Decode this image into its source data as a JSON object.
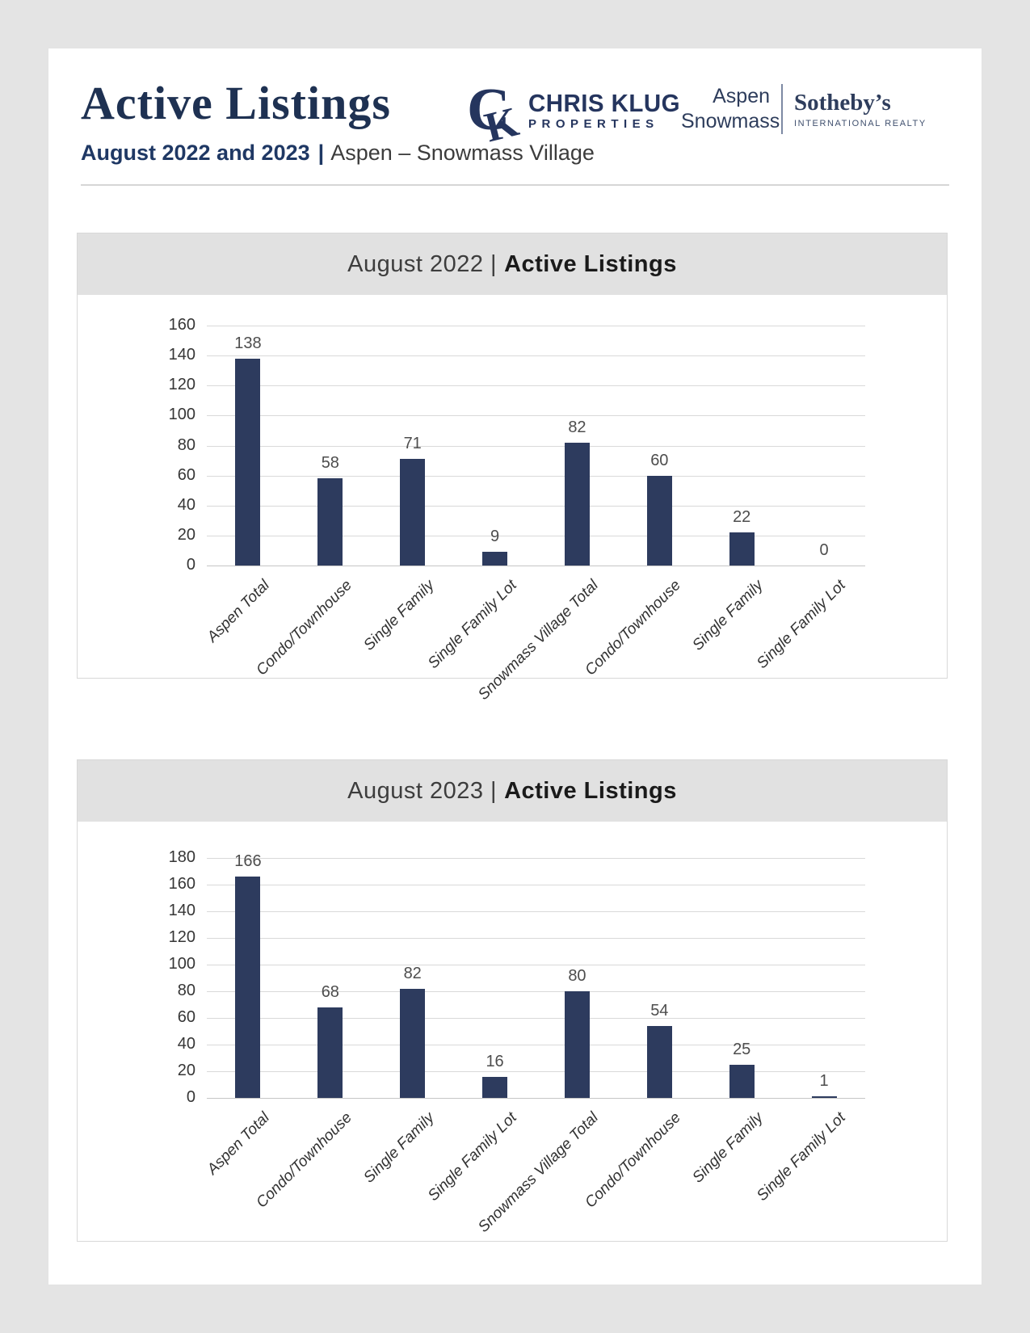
{
  "header": {
    "title": "Active Listings",
    "subtitle_bold": "August 2022 and 2023",
    "subtitle_separator": "|",
    "subtitle_rest": "Aspen – Snowmass Village"
  },
  "logos": {
    "chris_klug": {
      "monogram": "CK",
      "line1": "CHRIS KLUG",
      "line2": "PROPERTIES"
    },
    "sothebys": {
      "area_line1": "Aspen",
      "area_line2": "Snowmass",
      "brand": "Sotheby’s",
      "brand_sub": "INTERNATIONAL REALTY"
    }
  },
  "colors": {
    "navy_accent": "#1f3864",
    "bar": "#2d3b5e",
    "gridline": "#d9d9d9",
    "title_bar_bg": "#e1e1e1",
    "page_bg": "#e4e4e4"
  },
  "chart_data": [
    {
      "type": "bar",
      "title_prefix": "August 2022 |",
      "title_bold": "Active Listings",
      "categories": [
        "Aspen Total",
        "Condo/Townhouse",
        "Single Family",
        "Single Family Lot",
        "Snowmass Village Total",
        "Condo/Townhouse",
        "Single Family",
        "Single Family Lot"
      ],
      "values": [
        138,
        58,
        71,
        9,
        82,
        60,
        22,
        0
      ],
      "title": "August 2022 | Active Listings",
      "xlabel": "",
      "ylabel": "",
      "ylim": [
        0,
        160
      ],
      "ytick_step": 20,
      "grid": true,
      "legend": "none",
      "value_labels": true
    },
    {
      "type": "bar",
      "title_prefix": "August 2023 |",
      "title_bold": "Active Listings",
      "categories": [
        "Aspen Total",
        "Condo/Townhouse",
        "Single Family",
        "Single Family Lot",
        "Snowmass Village Total",
        "Condo/Townhouse",
        "Single Family",
        "Single Family Lot"
      ],
      "values": [
        166,
        68,
        82,
        16,
        80,
        54,
        25,
        1
      ],
      "title": "August 2023 | Active Listings",
      "xlabel": "",
      "ylabel": "",
      "ylim": [
        0,
        180
      ],
      "ytick_step": 20,
      "grid": true,
      "legend": "none",
      "value_labels": true
    }
  ]
}
